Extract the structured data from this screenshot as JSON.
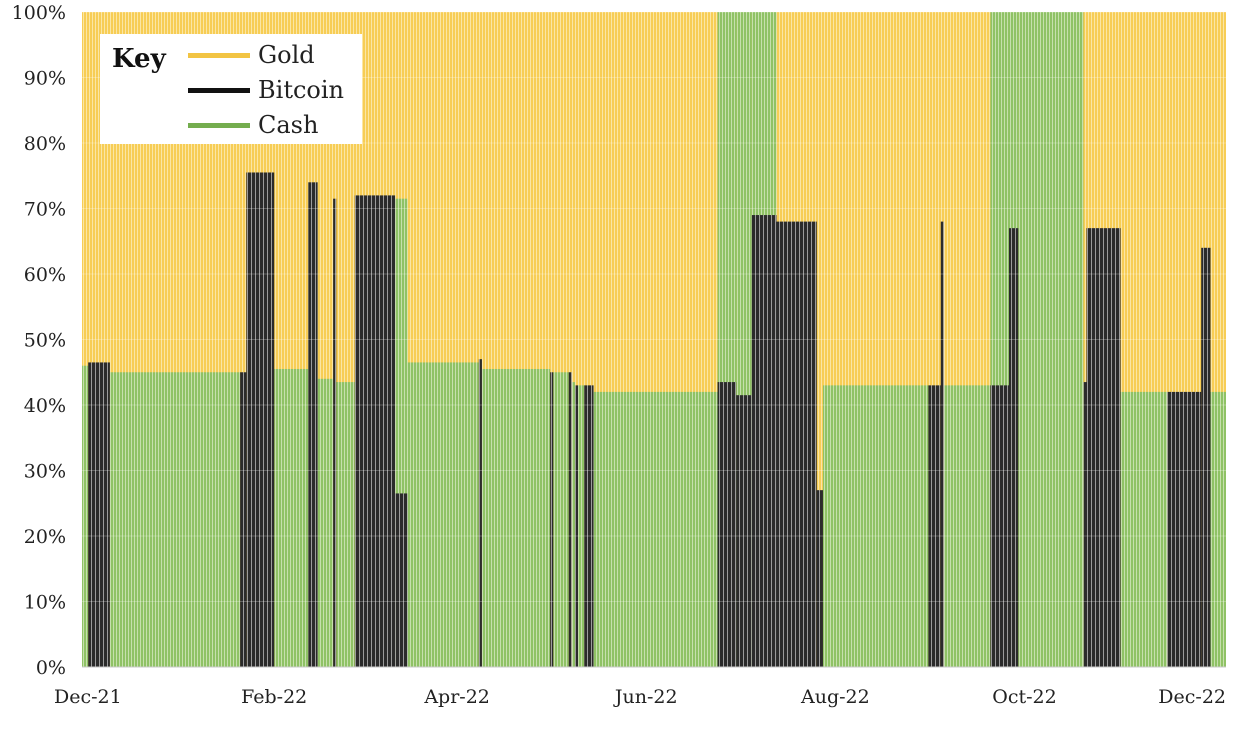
{
  "chart_data": {
    "type": "bar",
    "stacked": true,
    "normalized": true,
    "legend": {
      "title": "Key",
      "position": "top-left",
      "entries": [
        {
          "name": "Gold",
          "color": "#f2c443"
        },
        {
          "name": "Bitcoin",
          "color": "#111111"
        },
        {
          "name": "Cash",
          "color": "#74ad4e"
        }
      ]
    },
    "colors": {
      "gold": "#f7cd55",
      "cash": "#8fc265",
      "bitcoin": "#3a3a3a"
    },
    "yaxis": {
      "ticks": [
        "0%",
        "10%",
        "20%",
        "30%",
        "40%",
        "50%",
        "60%",
        "70%",
        "80%",
        "90%",
        "100%"
      ],
      "ylim": [
        0,
        100
      ]
    },
    "xaxis": {
      "ticks": [
        "Dec-21",
        "Feb-22",
        "Apr-22",
        "Jun-22",
        "Aug-22",
        "Oct-22",
        "Dec-22"
      ],
      "xlim": [
        "Dec-21",
        "Dec-22"
      ]
    },
    "grid": true,
    "segments": [
      {
        "kind": "cash",
        "from": "2021-12-01",
        "to": "2021-12-03",
        "level": 46
      },
      {
        "kind": "btc",
        "from": "2021-12-03",
        "to": "2021-12-10",
        "level": 46.5
      },
      {
        "kind": "cash",
        "from": "2021-12-10",
        "to": "2022-01-21",
        "level": 45
      },
      {
        "kind": "btc",
        "from": "2022-01-21",
        "to": "2022-01-23",
        "level": 45
      },
      {
        "kind": "btc",
        "from": "2022-01-23",
        "to": "2022-02-01",
        "level": 75.5
      },
      {
        "kind": "cash",
        "from": "2022-02-01",
        "to": "2022-02-12",
        "level": 45.5
      },
      {
        "kind": "btc",
        "from": "2022-02-12",
        "to": "2022-02-15",
        "level": 74
      },
      {
        "kind": "cash",
        "from": "2022-02-15",
        "to": "2022-02-20",
        "level": 44
      },
      {
        "kind": "btc",
        "from": "2022-02-20",
        "to": "2022-02-21",
        "level": 71.5
      },
      {
        "kind": "cash",
        "from": "2022-02-21",
        "to": "2022-02-27",
        "level": 43.5
      },
      {
        "kind": "btc",
        "from": "2022-02-27",
        "to": "2022-03-12",
        "level": 72
      },
      {
        "kind": "btc",
        "from": "2022-03-12",
        "to": "2022-03-16",
        "level": 26.5
      },
      {
        "kind": "cash",
        "from": "2022-03-12",
        "to": "2022-03-16",
        "level": 71.5
      },
      {
        "kind": "cash",
        "from": "2022-03-16",
        "to": "2022-04-08",
        "level": 46.5
      },
      {
        "kind": "btc",
        "from": "2022-04-08",
        "to": "2022-04-09",
        "level": 47
      },
      {
        "kind": "cash",
        "from": "2022-04-09",
        "to": "2022-05-01",
        "level": 45.5
      },
      {
        "kind": "btc",
        "from": "2022-05-01",
        "to": "2022-05-02",
        "level": 45
      },
      {
        "kind": "cash",
        "from": "2022-05-02",
        "to": "2022-05-07",
        "level": 45
      },
      {
        "kind": "btc",
        "from": "2022-05-07",
        "to": "2022-05-08",
        "level": 45
      },
      {
        "kind": "cash",
        "from": "2022-05-08",
        "to": "2022-05-09",
        "level": 43.5
      },
      {
        "kind": "btc",
        "from": "2022-05-09",
        "to": "2022-05-10",
        "level": 43
      },
      {
        "kind": "cash",
        "from": "2022-05-10",
        "to": "2022-05-12",
        "level": 43
      },
      {
        "kind": "btc",
        "from": "2022-05-12",
        "to": "2022-05-15",
        "level": 43
      },
      {
        "kind": "cash",
        "from": "2022-05-15",
        "to": "2022-06-24",
        "level": 42
      },
      {
        "kind": "btc",
        "from": "2022-06-24",
        "to": "2022-06-30",
        "level": 43.5
      },
      {
        "kind": "cash",
        "from": "2022-06-24",
        "to": "2022-06-30",
        "level": 100
      },
      {
        "kind": "btc",
        "from": "2022-06-30",
        "to": "2022-07-05",
        "level": 41.5
      },
      {
        "kind": "cash",
        "from": "2022-06-30",
        "to": "2022-07-05",
        "level": 100
      },
      {
        "kind": "btc",
        "from": "2022-07-05",
        "to": "2022-07-13",
        "level": 69
      },
      {
        "kind": "cash",
        "from": "2022-07-05",
        "to": "2022-07-13",
        "level": 100
      },
      {
        "kind": "btc",
        "from": "2022-07-13",
        "to": "2022-07-26",
        "level": 68
      },
      {
        "kind": "btc",
        "from": "2022-07-26",
        "to": "2022-07-28",
        "level": 27
      },
      {
        "kind": "cash",
        "from": "2022-07-28",
        "to": "2022-08-31",
        "level": 43
      },
      {
        "kind": "btc",
        "from": "2022-08-31",
        "to": "2022-09-04",
        "level": 43
      },
      {
        "kind": "btc",
        "from": "2022-09-04",
        "to": "2022-09-05",
        "level": 68
      },
      {
        "kind": "cash",
        "from": "2022-09-05",
        "to": "2022-09-20",
        "level": 43
      },
      {
        "kind": "btc",
        "from": "2022-09-20",
        "to": "2022-09-26",
        "level": 43
      },
      {
        "kind": "cash",
        "from": "2022-09-20",
        "to": "2022-09-26",
        "level": 100
      },
      {
        "kind": "btc",
        "from": "2022-09-26",
        "to": "2022-09-29",
        "level": 67
      },
      {
        "kind": "cash",
        "from": "2022-09-26",
        "to": "2022-09-29",
        "level": 100
      },
      {
        "kind": "cash",
        "from": "2022-09-29",
        "to": "2022-10-20",
        "level": 100
      },
      {
        "kind": "btc",
        "from": "2022-10-20",
        "to": "2022-10-21",
        "level": 43.5
      },
      {
        "kind": "btc",
        "from": "2022-10-21",
        "to": "2022-11-01",
        "level": 67
      },
      {
        "kind": "cash",
        "from": "2022-11-01",
        "to": "2022-11-16",
        "level": 42
      },
      {
        "kind": "btc",
        "from": "2022-11-16",
        "to": "2022-11-27",
        "level": 42
      },
      {
        "kind": "btc",
        "from": "2022-11-27",
        "to": "2022-11-30",
        "level": 64
      },
      {
        "kind": "cash",
        "from": "2022-11-30",
        "to": "2022-12-05",
        "level": 42
      }
    ]
  }
}
